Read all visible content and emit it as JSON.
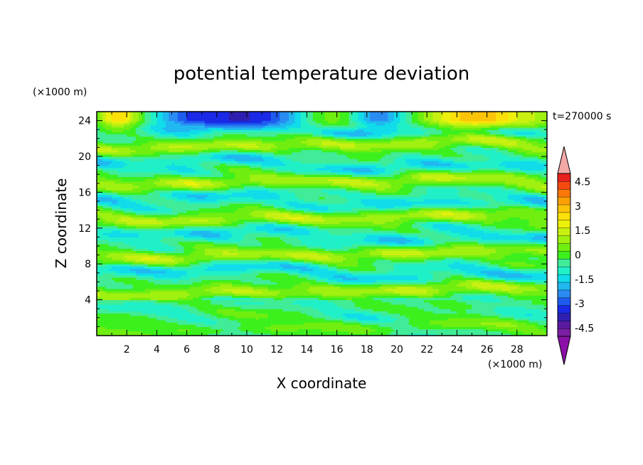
{
  "chart_data": {
    "type": "heatmap",
    "title": "potential temperature deviation",
    "xlabel": "X coordinate",
    "ylabel": "Z coordinate",
    "x_unit": "(×1000 m)",
    "y_unit": "(×1000 m)",
    "time_label": "t=270000 s",
    "xlim": [
      0,
      30
    ],
    "ylim": [
      0,
      25
    ],
    "x_ticks": [
      2,
      4,
      6,
      8,
      10,
      12,
      14,
      16,
      18,
      20,
      22,
      24,
      26,
      28
    ],
    "y_ticks": [
      4,
      8,
      12,
      16,
      20,
      24
    ],
    "colorbar": {
      "min": -5,
      "max": 5,
      "step": 0.5,
      "labels": [
        "4.5",
        "3",
        "1.5",
        "0",
        "-1.5",
        "-3",
        "-4.5"
      ],
      "label_values": [
        4.5,
        3,
        1.5,
        0,
        -1.5,
        -3,
        -4.5
      ],
      "colors": [
        "#7a1fa2",
        "#5a1aa0",
        "#2f1fb0",
        "#1a2ae6",
        "#1e5cf0",
        "#2a8cf2",
        "#20b8f0",
        "#10dcea",
        "#20f0c8",
        "#40ec98",
        "#3cf01e",
        "#70ee10",
        "#a0f010",
        "#c8f010",
        "#ecf00a",
        "#fce00a",
        "#fcc408",
        "#fca008",
        "#fc780a",
        "#f44a10",
        "#e82020"
      ],
      "over_color": "#f4a8a8",
      "under_color": "#8a10a8"
    }
  }
}
